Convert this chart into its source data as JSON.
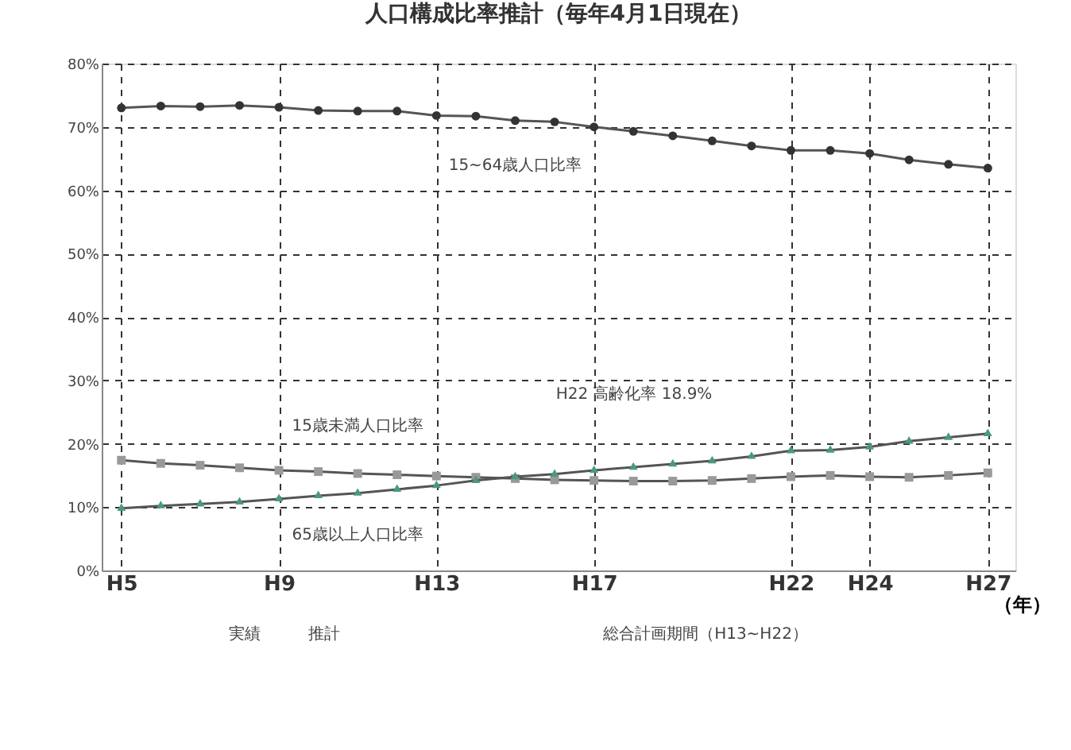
{
  "chart_data": {
    "type": "line",
    "title": "人口構成比率推計（毎年4月1日現在）",
    "xlabel": "（年）",
    "categories": [
      "H5",
      null,
      null,
      null,
      "H9",
      null,
      null,
      null,
      "H13",
      null,
      null,
      null,
      "H17",
      null,
      null,
      null,
      null,
      "H22",
      null,
      "H24",
      null,
      null,
      "H27"
    ],
    "series": [
      {
        "name": "15~64歳人口比率",
        "color": "#333333",
        "marker": "circle",
        "values": [
          73.0,
          73.3,
          73.2,
          73.4,
          73.1,
          72.6,
          72.5,
          72.5,
          71.8,
          71.7,
          71.0,
          70.8,
          70.0,
          69.3,
          68.6,
          67.8,
          67.0,
          66.3,
          66.3,
          65.8,
          64.8,
          64.1,
          63.5
        ]
      },
      {
        "name": "15歳未満人口比率",
        "color": "#999999",
        "marker": "square",
        "values": [
          17.4,
          16.9,
          16.6,
          16.2,
          15.8,
          15.6,
          15.3,
          15.1,
          14.9,
          14.7,
          14.5,
          14.3,
          14.2,
          14.1,
          14.1,
          14.2,
          14.5,
          14.8,
          15.0,
          14.8,
          14.7,
          15.0,
          15.4
        ]
      },
      {
        "name": "65歳以上人口比率",
        "color": "#4a9a7a",
        "marker": "triangle",
        "values": [
          9.8,
          10.2,
          10.5,
          10.8,
          11.3,
          11.8,
          12.2,
          12.8,
          13.4,
          14.2,
          14.8,
          15.2,
          15.8,
          16.3,
          16.8,
          17.3,
          18.0,
          18.9,
          19.0,
          19.5,
          20.4,
          21.0,
          21.6
        ]
      }
    ],
    "ylim": [
      0,
      80
    ],
    "yticks": [
      {
        "value": 0,
        "label": "0%"
      },
      {
        "value": 10,
        "label": "10%"
      },
      {
        "value": 20,
        "label": "20%"
      },
      {
        "value": 30,
        "label": "30%"
      },
      {
        "value": 40,
        "label": "40%"
      },
      {
        "value": 50,
        "label": "50%"
      },
      {
        "value": 60,
        "label": "60%"
      },
      {
        "value": 70,
        "label": "70%"
      },
      {
        "value": 80,
        "label": "80%"
      }
    ],
    "grid": true,
    "legend": false,
    "line_style": "solid",
    "annotations": [
      "H22 高齢化率 18.9%",
      "実績",
      "推計",
      "総合計画期間（H13~H22）"
    ]
  }
}
